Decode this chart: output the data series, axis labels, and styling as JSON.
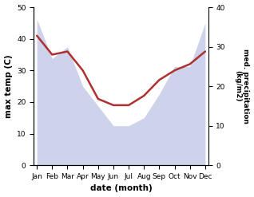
{
  "months": [
    "Jan",
    "Feb",
    "Mar",
    "Apr",
    "May",
    "Jun",
    "Jul",
    "Aug",
    "Sep",
    "Oct",
    "Nov",
    "Dec"
  ],
  "month_indices": [
    0,
    1,
    2,
    3,
    4,
    5,
    6,
    7,
    8,
    9,
    10,
    11
  ],
  "max_temp": [
    41,
    35,
    36,
    30,
    21,
    19,
    19,
    22,
    27,
    30,
    32,
    36
  ],
  "precipitation": [
    37,
    27,
    30,
    20,
    15,
    10,
    10,
    12,
    18,
    25,
    25,
    36
  ],
  "temp_ylim": [
    0,
    50
  ],
  "precip_ylim": [
    0,
    40
  ],
  "temp_color": "#b03030",
  "precip_fill_color": "#c5cce8",
  "precip_fill_alpha": 0.85,
  "temp_linewidth": 1.8,
  "xlabel": "date (month)",
  "ylabel_left": "max temp (C)",
  "ylabel_right": "med. precipitation\n(kg/m2)",
  "yticks_left": [
    0,
    10,
    20,
    30,
    40,
    50
  ],
  "yticks_right": [
    0,
    10,
    20,
    30,
    40
  ],
  "figsize": [
    3.18,
    2.47
  ],
  "dpi": 100
}
